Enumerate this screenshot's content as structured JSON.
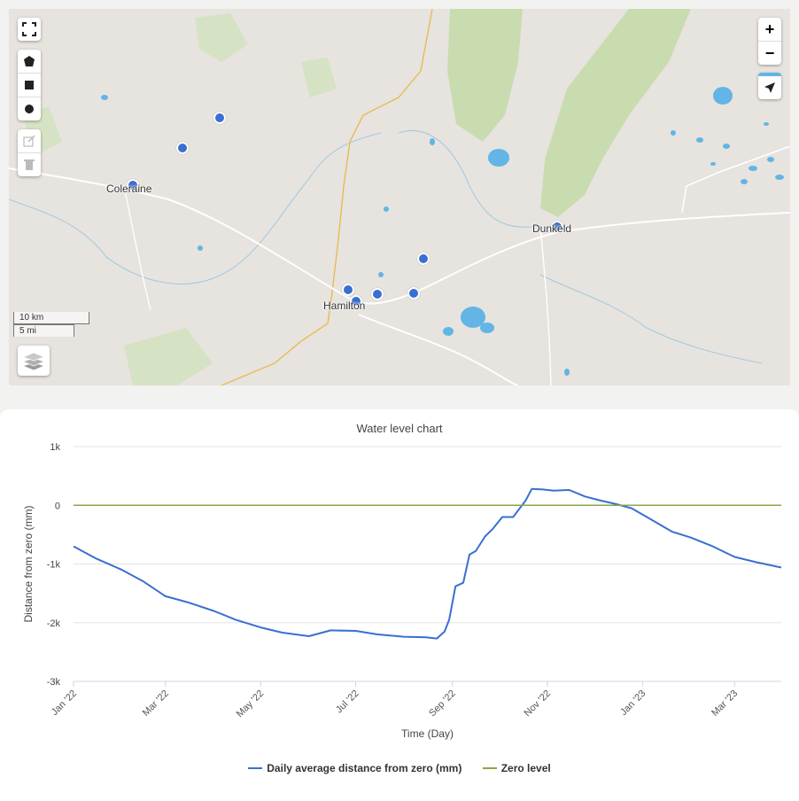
{
  "map": {
    "towns": [
      {
        "name": "Coleraine"
      },
      {
        "name": "Hamilton"
      },
      {
        "name": "Dunkeld"
      }
    ],
    "scale": {
      "metric": "10 km",
      "imperial": "5 mi"
    },
    "zoom_in": "+",
    "zoom_out": "−",
    "colors": {
      "marker": "#3a6fd1",
      "water": "#62b5e5",
      "forest": "#c9dcb0",
      "road": "#e8b94a"
    }
  },
  "chart_data": {
    "type": "line",
    "title": "Water level chart",
    "xlabel": "Time (Day)",
    "ylabel": "Distance from zero (mm)",
    "ylim": [
      -3000,
      1000
    ],
    "y_ticks": [
      "1k",
      "0",
      "-1k",
      "-2k",
      "-3k"
    ],
    "x_ticks": [
      "Jan '22",
      "Mar '22",
      "May '22",
      "Jul '22",
      "Sep '22",
      "Nov '22",
      "Jan '23",
      "Mar '23"
    ],
    "grid": true,
    "legend_placement": "bottom",
    "series": [
      {
        "name": "Daily average distance from zero (mm)",
        "color": "#3a6fd1",
        "x": [
          "2022-01-01",
          "2022-01-15",
          "2022-02-01",
          "2022-02-15",
          "2022-03-01",
          "2022-03-15",
          "2022-04-01",
          "2022-04-15",
          "2022-05-01",
          "2022-05-15",
          "2022-06-01",
          "2022-06-15",
          "2022-07-01",
          "2022-07-15",
          "2022-08-01",
          "2022-08-15",
          "2022-08-22",
          "2022-08-27",
          "2022-08-30",
          "2022-09-03",
          "2022-09-08",
          "2022-09-12",
          "2022-09-16",
          "2022-09-22",
          "2022-09-27",
          "2022-10-03",
          "2022-10-10",
          "2022-10-18",
          "2022-10-22",
          "2022-10-29",
          "2022-11-05",
          "2022-11-15",
          "2022-11-25",
          "2022-12-05",
          "2022-12-15",
          "2022-12-25",
          "2023-01-05",
          "2023-01-20",
          "2023-02-01",
          "2023-02-15",
          "2023-03-01",
          "2023-03-15",
          "2023-03-31"
        ],
        "y": [
          -700,
          -900,
          -1100,
          -1300,
          -1550,
          -1650,
          -1800,
          -1950,
          -2080,
          -2170,
          -2230,
          -2130,
          -2140,
          -2200,
          -2240,
          -2250,
          -2270,
          -2150,
          -1950,
          -1380,
          -1320,
          -840,
          -780,
          -530,
          -400,
          -200,
          -200,
          80,
          280,
          270,
          250,
          260,
          150,
          80,
          20,
          -50,
          -220,
          -450,
          -550,
          -700,
          -880,
          -970,
          -1060
        ]
      },
      {
        "name": "Zero level",
        "color": "#8aa64a",
        "x": [
          "2022-01-01",
          "2023-03-31"
        ],
        "y": [
          0,
          0
        ]
      }
    ]
  }
}
